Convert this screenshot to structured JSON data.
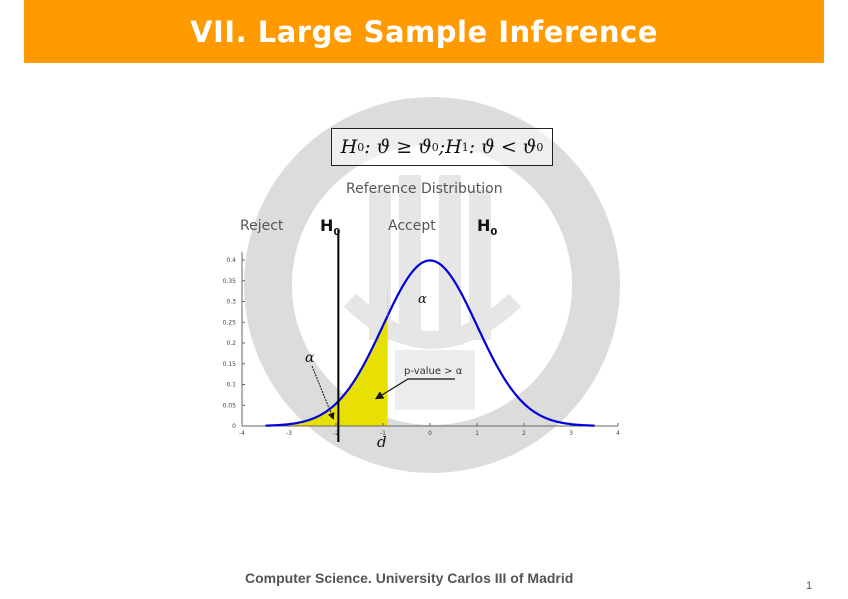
{
  "slide": {
    "title": "VII. Large Sample Inference",
    "hypothesis": {
      "h0_symbol": "H",
      "h0_sub": "0",
      "h0_relation": " : ϑ ≥ ϑ",
      "theta0_sub": "0",
      "separator": "; ",
      "h1_symbol": "H",
      "h1_sub": "1",
      "h1_relation": " : ϑ < ϑ",
      "theta0_sub_2": "0"
    },
    "subtitle": "Reference Distribution",
    "reject_label": "Reject",
    "accept_label": "Accept",
    "h0_label": "H",
    "h0_label_sub": "0",
    "footer": "Computer Science. University Carlos III of Madrid",
    "page_number": "1"
  },
  "colors": {
    "title_bar": "#ff9a00",
    "curve": "#0000dd",
    "shade": "#e8e000",
    "seal": "#dcdcdc"
  },
  "chart_data": {
    "type": "area",
    "title": "Reference Distribution",
    "xlabel": "",
    "ylabel": "",
    "xlim": [
      -4,
      4
    ],
    "ylim": [
      0,
      0.4
    ],
    "x_ticks": [
      -4,
      -3,
      -2,
      -1,
      0,
      1,
      2,
      3,
      4
    ],
    "y_ticks": [
      0,
      0.05,
      0.1,
      0.15,
      0.2,
      0.25,
      0.3,
      0.35,
      0.4
    ],
    "series": [
      {
        "name": "standard normal pdf",
        "mean": 0,
        "sd": 1,
        "x_range": [
          -3.5,
          3.5
        ]
      }
    ],
    "shaded_region": {
      "from": -3.4,
      "to": -0.9,
      "label": "p-value > α"
    },
    "critical_value": -1.95,
    "observed_statistic": -0.9,
    "annotations": [
      {
        "text": "α",
        "x": -2.5,
        "y": 0.16,
        "note": "tail area left of critical value"
      },
      {
        "text": "α",
        "x": -0.15,
        "y": 0.31
      },
      {
        "text": "p-value > α",
        "x": -0.6,
        "y": 0.135
      },
      {
        "text": "d",
        "x": -1.0,
        "y": -0.04
      }
    ],
    "region_labels": [
      "Reject H0",
      "Accept H0"
    ],
    "grid": false,
    "legend": "none"
  }
}
